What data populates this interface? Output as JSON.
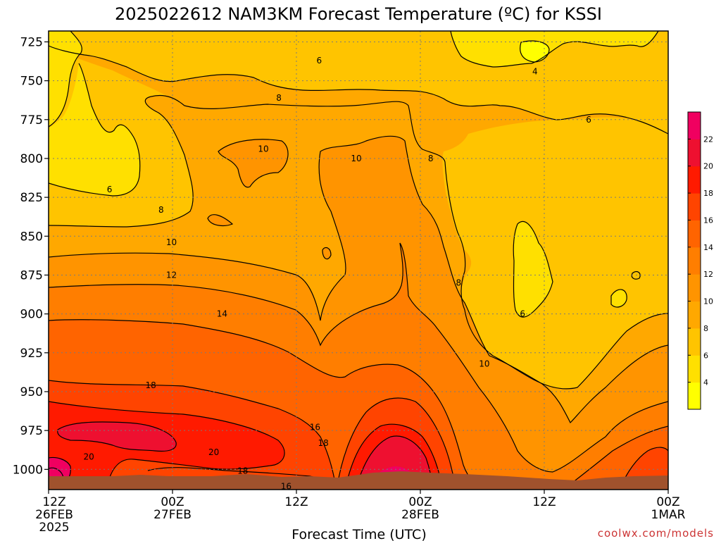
{
  "chart_data": {
    "type": "heatmap",
    "title": "2025022612 NAM3KM Forecast Temperature (ºC) for KSSI",
    "xlabel": "Forecast Time (UTC)",
    "ylabel": "",
    "x_ticks": [
      {
        "label": [
          "12Z",
          "26FEB",
          "2025"
        ],
        "hour": 0
      },
      {
        "label": [
          "00Z",
          "27FEB"
        ],
        "hour": 12
      },
      {
        "label": [
          "12Z"
        ],
        "hour": 24
      },
      {
        "label": [
          "00Z",
          "28FEB"
        ],
        "hour": 36
      },
      {
        "label": [
          "12Z"
        ],
        "hour": 48
      },
      {
        "label": [
          "00Z",
          "1MAR"
        ],
        "hour": 60
      }
    ],
    "y_ticks": [
      "725",
      "750",
      "775",
      "800",
      "825",
      "850",
      "875",
      "900",
      "925",
      "950",
      "975",
      "1000"
    ],
    "ylim": [
      1013,
      718
    ],
    "xlim": [
      0,
      60
    ],
    "y_reversed": true,
    "colorbar": {
      "ticks": [
        "4",
        "6",
        "8",
        "10",
        "12",
        "14",
        "16",
        "18",
        "20",
        "22"
      ],
      "colors": [
        "#ffff00",
        "#ffe000",
        "#ffc400",
        "#ffa800",
        "#ff9400",
        "#ff7e00",
        "#ff6400",
        "#ff4400",
        "#ff1a00",
        "#ee1030",
        "#f00060"
      ]
    },
    "contour_labels": [
      {
        "text": "6",
        "hour": 26.2,
        "hPa": 737
      },
      {
        "text": "4",
        "hour": 47.1,
        "hPa": 744
      },
      {
        "text": "8",
        "hour": 22.3,
        "hPa": 761
      },
      {
        "text": "6",
        "hour": 52.3,
        "hPa": 775
      },
      {
        "text": "10",
        "hour": 20.8,
        "hPa": 794
      },
      {
        "text": "10",
        "hour": 29.8,
        "hPa": 800
      },
      {
        "text": "8",
        "hour": 37.0,
        "hPa": 800
      },
      {
        "text": "6",
        "hour": 5.9,
        "hPa": 820
      },
      {
        "text": "8",
        "hour": 10.9,
        "hPa": 833
      },
      {
        "text": "10",
        "hour": 11.9,
        "hPa": 854
      },
      {
        "text": "12",
        "hour": 11.9,
        "hPa": 875
      },
      {
        "text": "8",
        "hour": 39.7,
        "hPa": 880
      },
      {
        "text": "14",
        "hour": 16.8,
        "hPa": 900
      },
      {
        "text": "6",
        "hour": 45.9,
        "hPa": 900
      },
      {
        "text": "10",
        "hour": 42.2,
        "hPa": 932
      },
      {
        "text": "18",
        "hour": 9.9,
        "hPa": 946
      },
      {
        "text": "16",
        "hour": 25.8,
        "hPa": 973
      },
      {
        "text": "18",
        "hour": 26.6,
        "hPa": 983
      },
      {
        "text": "20",
        "hour": 3.9,
        "hPa": 992
      },
      {
        "text": "20",
        "hour": 16.0,
        "hPa": 989
      },
      {
        "text": "18",
        "hour": 18.8,
        "hPa": 1001
      },
      {
        "text": "16",
        "hour": 23.0,
        "hPa": 1011
      }
    ]
  },
  "credit": "coolwx.com/models"
}
